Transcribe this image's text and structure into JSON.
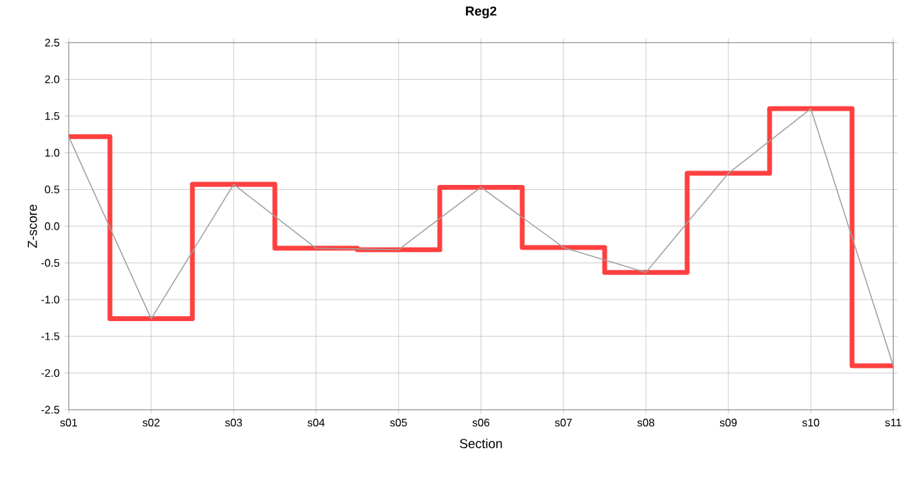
{
  "chart_data": {
    "type": "line",
    "title": "Reg2",
    "xlabel": "Section",
    "ylabel": "Z-score",
    "categories": [
      "s01",
      "s02",
      "s03",
      "s04",
      "s05",
      "s06",
      "s07",
      "s08",
      "s09",
      "s10",
      "s11"
    ],
    "series": [
      {
        "type": "step",
        "color": "#ff4040",
        "values": [
          1.22,
          -1.26,
          0.57,
          -0.3,
          -0.32,
          0.53,
          -0.29,
          -0.63,
          0.72,
          1.6,
          -1.9
        ]
      },
      {
        "color": "#a0a0a0",
        "values": [
          1.22,
          -1.26,
          0.57,
          -0.3,
          -0.32,
          0.53,
          -0.29,
          -0.63,
          0.72,
          1.6,
          -1.9
        ]
      }
    ],
    "ylim": [
      -2.5,
      2.5
    ],
    "yticks": [
      {
        "value": -2.5,
        "label": "-2.5"
      },
      {
        "value": -2,
        "label": "-2.0"
      },
      {
        "value": -1.5,
        "label": "-1.5"
      },
      {
        "value": -1,
        "label": "-1.0"
      },
      {
        "value": -0.5,
        "label": "-0.5"
      },
      {
        "value": 0,
        "label": "0.0"
      },
      {
        "value": 0.5,
        "label": "0.5"
      },
      {
        "value": 1,
        "label": "1.0"
      },
      {
        "value": 1.5,
        "label": "1.5"
      },
      {
        "value": 2,
        "label": "2.0"
      },
      {
        "value": 2.5,
        "label": "2.5"
      }
    ],
    "grid": true
  }
}
